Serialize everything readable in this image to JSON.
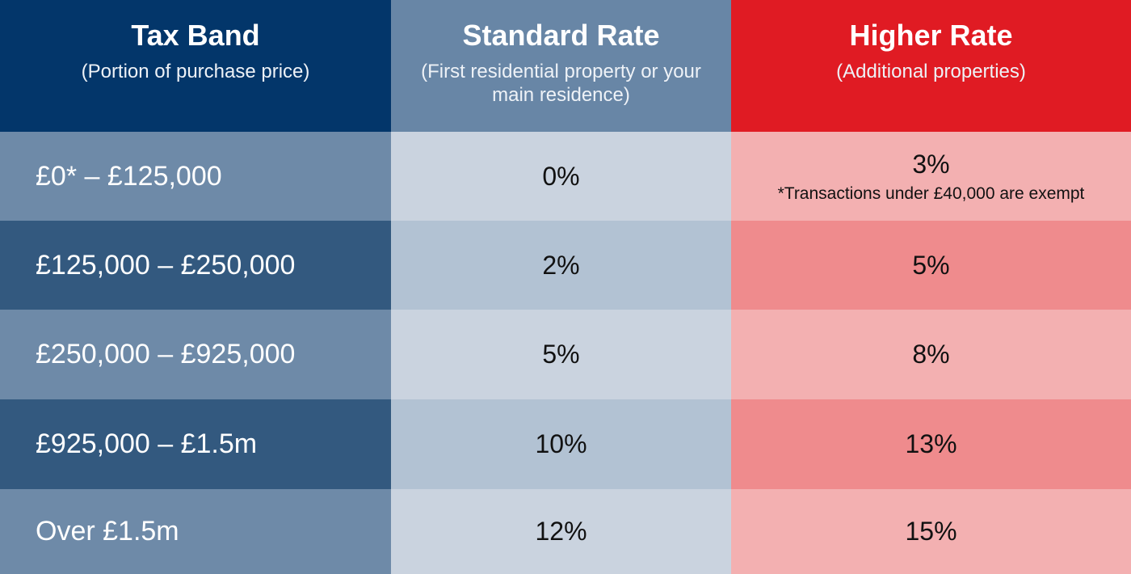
{
  "header": [
    {
      "title": "Tax Band",
      "subtitle": "(Portion of purchase price)"
    },
    {
      "title": "Standard Rate",
      "subtitle": "(First residential property or your main residence)"
    },
    {
      "title": "Higher Rate",
      "subtitle": "(Additional properties)"
    }
  ],
  "rows": [
    {
      "band": "£0* – £125,000",
      "standard": "0%",
      "higher": "3%",
      "note": "*Transactions under £40,000 are exempt"
    },
    {
      "band": "£125,000 – £250,000",
      "standard": "2%",
      "higher": "5%"
    },
    {
      "band": "£250,000 – £925,000",
      "standard": "5%",
      "higher": "8%"
    },
    {
      "band": "£925,000 – £1.5m",
      "standard": "10%",
      "higher": "13%"
    },
    {
      "band": "Over £1.5m",
      "standard": "12%",
      "higher": "15%"
    }
  ]
}
